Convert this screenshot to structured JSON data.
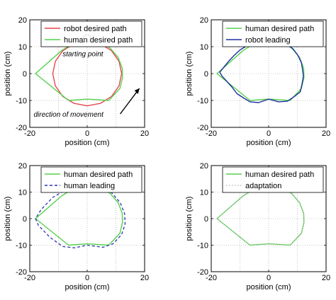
{
  "chart_data": [
    {
      "type": "line",
      "xlabel": "position (cm)",
      "ylabel": "position (cm)",
      "xlim": [
        -20,
        20
      ],
      "ylim": [
        -20,
        20
      ],
      "xticks": [
        -20,
        0,
        20
      ],
      "yticks": [
        -20,
        -10,
        0,
        10,
        20
      ],
      "grid": true,
      "legend_position": "top",
      "series": [
        {
          "name": "robot desired path",
          "color": "#e8454f",
          "style": "solid",
          "points": [
            [
              12,
              0
            ],
            [
              11.09,
              4.59
            ],
            [
              8.49,
              8.49
            ],
            [
              4.59,
              11.09
            ],
            [
              0,
              12
            ],
            [
              -4.59,
              11.09
            ],
            [
              -8.49,
              8.49
            ],
            [
              -11.09,
              4.59
            ],
            [
              -12,
              0
            ],
            [
              -11.09,
              -4.59
            ],
            [
              -8.49,
              -8.49
            ],
            [
              -4.59,
              -11.09
            ],
            [
              0,
              -12
            ],
            [
              4.59,
              -11.09
            ],
            [
              8.49,
              -8.49
            ],
            [
              11.09,
              -4.59
            ],
            [
              12,
              0
            ]
          ]
        },
        {
          "name": "human desired path",
          "color": "#55d14d",
          "style": "solid",
          "points": [
            [
              0,
              12.5
            ],
            [
              4.2,
              11.8
            ],
            [
              8,
              9.5
            ],
            [
              10.8,
              6
            ],
            [
              12.2,
              2
            ],
            [
              12.3,
              -1.5
            ],
            [
              11.4,
              -5.5
            ],
            [
              7.5,
              -10
            ],
            [
              0,
              -9.5
            ],
            [
              -6.5,
              -10
            ],
            [
              -18,
              0
            ],
            [
              -9,
              8.5
            ],
            [
              -5,
              11.2
            ],
            [
              0,
              12.5
            ]
          ]
        }
      ],
      "annotations": [
        {
          "text": "starting point",
          "x": -1.5,
          "y": 6.5
        },
        {
          "text": "direction of movement",
          "x": -6.5,
          "y": -16
        }
      ]
    },
    {
      "type": "line",
      "xlabel": "position (cm)",
      "ylabel": "position (cm)",
      "xlim": [
        -20,
        20
      ],
      "ylim": [
        -20,
        20
      ],
      "xticks": [
        -20,
        0,
        20
      ],
      "yticks": [
        -20,
        -10,
        0,
        10,
        20
      ],
      "grid": true,
      "legend_position": "top",
      "series": [
        {
          "name": "human desired path",
          "color": "#55d14d",
          "style": "solid",
          "points": [
            [
              0,
              12.5
            ],
            [
              4.2,
              11.8
            ],
            [
              8,
              9.5
            ],
            [
              10.8,
              6
            ],
            [
              12.2,
              2
            ],
            [
              12.3,
              -1.5
            ],
            [
              11.4,
              -5.5
            ],
            [
              7.5,
              -10
            ],
            [
              0,
              -9.5
            ],
            [
              -6.5,
              -10
            ],
            [
              -18,
              0
            ],
            [
              -9,
              8.5
            ],
            [
              -5,
              11.2
            ],
            [
              0,
              12.5
            ]
          ]
        },
        {
          "name": "robot leading",
          "color": "#1f2fa0",
          "style": "solid",
          "points": [
            [
              0,
              12.8
            ],
            [
              2,
              12.3
            ],
            [
              4.5,
              12
            ],
            [
              6.8,
              10.5
            ],
            [
              8.5,
              9.2
            ],
            [
              10.2,
              6.8
            ],
            [
              11.4,
              4
            ],
            [
              11.8,
              1.5
            ],
            [
              12.1,
              -1
            ],
            [
              11.6,
              -4
            ],
            [
              11,
              -6.8
            ],
            [
              9,
              -8.5
            ],
            [
              6.5,
              -10.3
            ],
            [
              3.5,
              -10.5
            ],
            [
              0,
              -9.5
            ],
            [
              -3.5,
              -10.8
            ],
            [
              -6.5,
              -10.5
            ],
            [
              -8.5,
              -9.2
            ],
            [
              -11,
              -7.5
            ],
            [
              -12.8,
              -5
            ],
            [
              -14.5,
              -3
            ],
            [
              -16.2,
              -1
            ],
            [
              -17,
              0.5
            ],
            [
              -15.5,
              2.5
            ],
            [
              -14,
              4.5
            ],
            [
              -12,
              6.8
            ],
            [
              -10,
              8.8
            ],
            [
              -7.5,
              10.4
            ],
            [
              -5,
              11.5
            ],
            [
              -2.5,
              12.3
            ],
            [
              0,
              12.8
            ]
          ]
        }
      ]
    },
    {
      "type": "line",
      "xlabel": "position (cm)",
      "ylabel": "position (cm)",
      "xlim": [
        -20,
        20
      ],
      "ylim": [
        -20,
        20
      ],
      "xticks": [
        -20,
        0,
        20
      ],
      "yticks": [
        -20,
        -10,
        0,
        10,
        20
      ],
      "grid": true,
      "legend_position": "top",
      "series": [
        {
          "name": "human desired path",
          "color": "#55d14d",
          "style": "solid",
          "points": [
            [
              0,
              12.5
            ],
            [
              4.2,
              11.8
            ],
            [
              8,
              9.5
            ],
            [
              10.8,
              6
            ],
            [
              12.2,
              2
            ],
            [
              12.3,
              -1.5
            ],
            [
              11.4,
              -5.5
            ],
            [
              7.5,
              -10
            ],
            [
              0,
              -9.5
            ],
            [
              -6.5,
              -10
            ],
            [
              -18,
              0
            ],
            [
              -9,
              8.5
            ],
            [
              -5,
              11.2
            ],
            [
              0,
              12.5
            ]
          ]
        },
        {
          "name": "human leading",
          "color": "#2a35b0",
          "style": "dashed",
          "points": [
            [
              0,
              13
            ],
            [
              4.5,
              12
            ],
            [
              8.5,
              9.8
            ],
            [
              11.5,
              6
            ],
            [
              13,
              2
            ],
            [
              13.2,
              -2
            ],
            [
              12,
              -6
            ],
            [
              9,
              -9.5
            ],
            [
              5.5,
              -10.8
            ],
            [
              0,
              -10
            ],
            [
              -4.5,
              -11
            ],
            [
              -8.5,
              -10.5
            ],
            [
              -13,
              -7
            ],
            [
              -17,
              -2.5
            ],
            [
              -18,
              0
            ],
            [
              -16,
              3.5
            ],
            [
              -12,
              8
            ],
            [
              -8,
              10.5
            ],
            [
              -4,
              12
            ],
            [
              0,
              13
            ]
          ]
        }
      ]
    },
    {
      "type": "line",
      "xlabel": "position (cm)",
      "ylabel": "position (cm)",
      "xlim": [
        -20,
        20
      ],
      "ylim": [
        -20,
        20
      ],
      "xticks": [
        -20,
        0,
        20
      ],
      "yticks": [
        -20,
        -10,
        0,
        10,
        20
      ],
      "grid": true,
      "legend_position": "top",
      "series": [
        {
          "name": "human desired path",
          "color": "#55d14d",
          "style": "solid",
          "points": [
            [
              0,
              12.5
            ],
            [
              4.2,
              11.8
            ],
            [
              8,
              9.5
            ],
            [
              10.8,
              6
            ],
            [
              12.2,
              2
            ],
            [
              12.3,
              -1.5
            ],
            [
              11.4,
              -5.5
            ],
            [
              7.5,
              -10
            ],
            [
              0,
              -9.5
            ],
            [
              -6.5,
              -10
            ],
            [
              -18,
              0
            ],
            [
              -9,
              8.5
            ],
            [
              -5,
              11.2
            ],
            [
              0,
              12.5
            ]
          ]
        },
        {
          "name": "adaptation",
          "color": "#bbbbbb",
          "style": "dotted",
          "points": [
            [
              0,
              12.5
            ],
            [
              4.2,
              11.8
            ],
            [
              8,
              9.5
            ],
            [
              10.8,
              6
            ],
            [
              12.2,
              2
            ],
            [
              12.3,
              -1.5
            ],
            [
              11.4,
              -5.5
            ],
            [
              7.5,
              -10
            ],
            [
              0,
              -9.5
            ],
            [
              -6.5,
              -10
            ],
            [
              -18,
              0
            ],
            [
              -9,
              8.5
            ],
            [
              -5,
              11.2
            ],
            [
              0,
              12.5
            ]
          ]
        }
      ]
    }
  ]
}
